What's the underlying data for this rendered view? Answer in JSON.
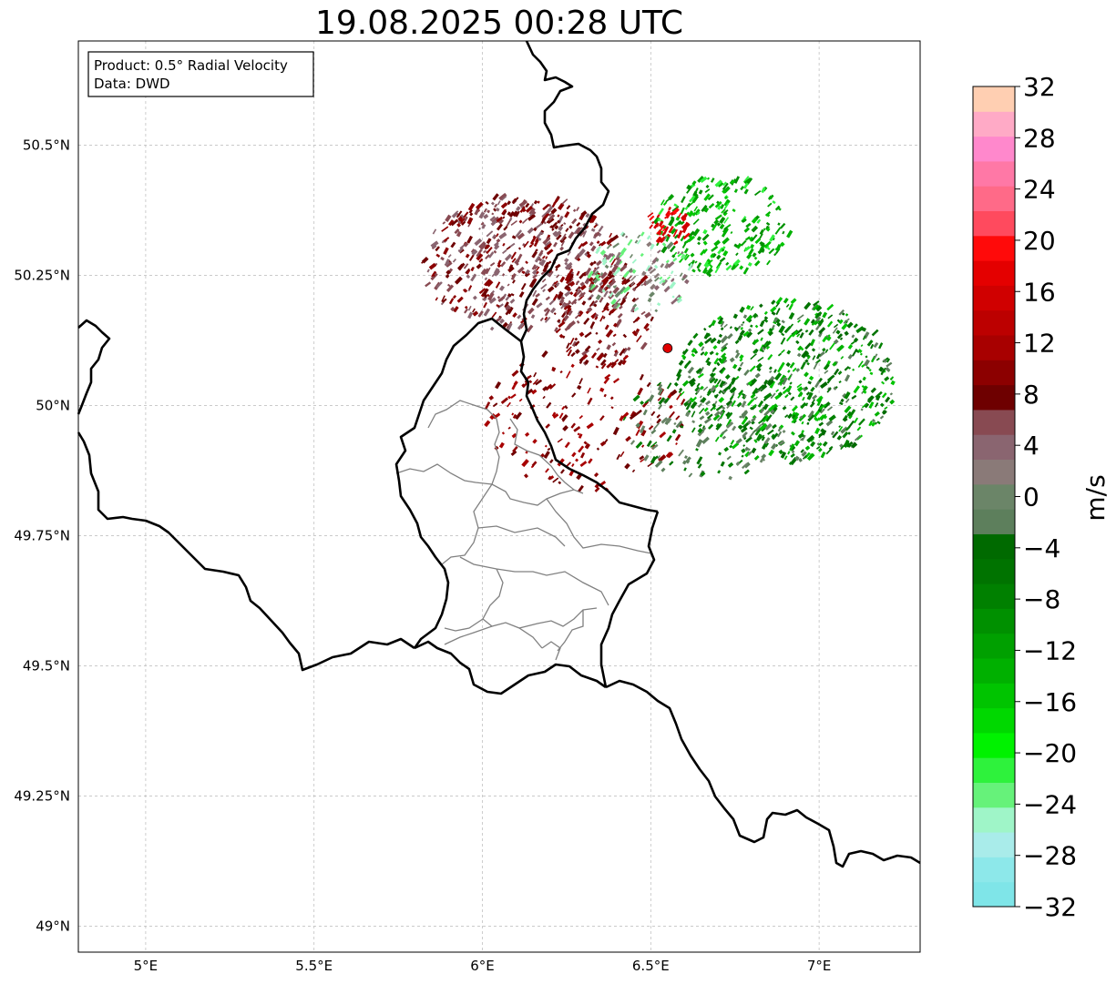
{
  "title": "19.08.2025 00:28 UTC",
  "info_box": {
    "product": "Product: 0.5° Radial Velocity",
    "data_source": "Data: DWD"
  },
  "map": {
    "lon_range": [
      4.8,
      7.3
    ],
    "lat_range": [
      48.95,
      50.7
    ],
    "lon_ticks": [
      {
        "value": 5.0,
        "label": "5°E"
      },
      {
        "value": 5.5,
        "label": "5.5°E"
      },
      {
        "value": 6.0,
        "label": "6°E"
      },
      {
        "value": 6.5,
        "label": "6.5°E"
      },
      {
        "value": 7.0,
        "label": "7°E"
      }
    ],
    "lat_ticks": [
      {
        "value": 49.0,
        "label": "49°N"
      },
      {
        "value": 49.25,
        "label": "49.25°N"
      },
      {
        "value": 49.5,
        "label": "49.5°N"
      },
      {
        "value": 49.75,
        "label": "49.75°N"
      },
      {
        "value": 50.0,
        "label": "50°N"
      },
      {
        "value": 50.25,
        "label": "50.25°N"
      },
      {
        "value": 50.5,
        "label": "50.5°N"
      }
    ],
    "gridlines": true,
    "radar_site": {
      "lon": 6.55,
      "lat": 50.11,
      "color": "#e00000"
    }
  },
  "colorbar": {
    "label": "m/s",
    "min": -32,
    "max": 32,
    "ticks": [
      "32",
      "28",
      "24",
      "20",
      "16",
      "12",
      "8",
      "4",
      "0",
      "−4",
      "−8",
      "−12",
      "−16",
      "−20",
      "−24",
      "−28",
      "−32"
    ],
    "colors_bottom_to_top": [
      "#7fe5e8",
      "#8de8ea",
      "#a9ecea",
      "#9ff5c8",
      "#66f27a",
      "#2ef23c",
      "#00f200",
      "#00d800",
      "#00c400",
      "#00b000",
      "#00a000",
      "#009000",
      "#008000",
      "#007300",
      "#006a00",
      "#5d7f5c",
      "#6b8568",
      "#8a7a78",
      "#8a6570",
      "#884a52",
      "#6e0000",
      "#8c0000",
      "#a80000",
      "#bc0000",
      "#d00000",
      "#e40000",
      "#ff0a0a",
      "#ff4a5e",
      "#ff6a88",
      "#ff78a6",
      "#ff88cc",
      "#ffaac6",
      "#ffcfb2"
    ]
  }
}
